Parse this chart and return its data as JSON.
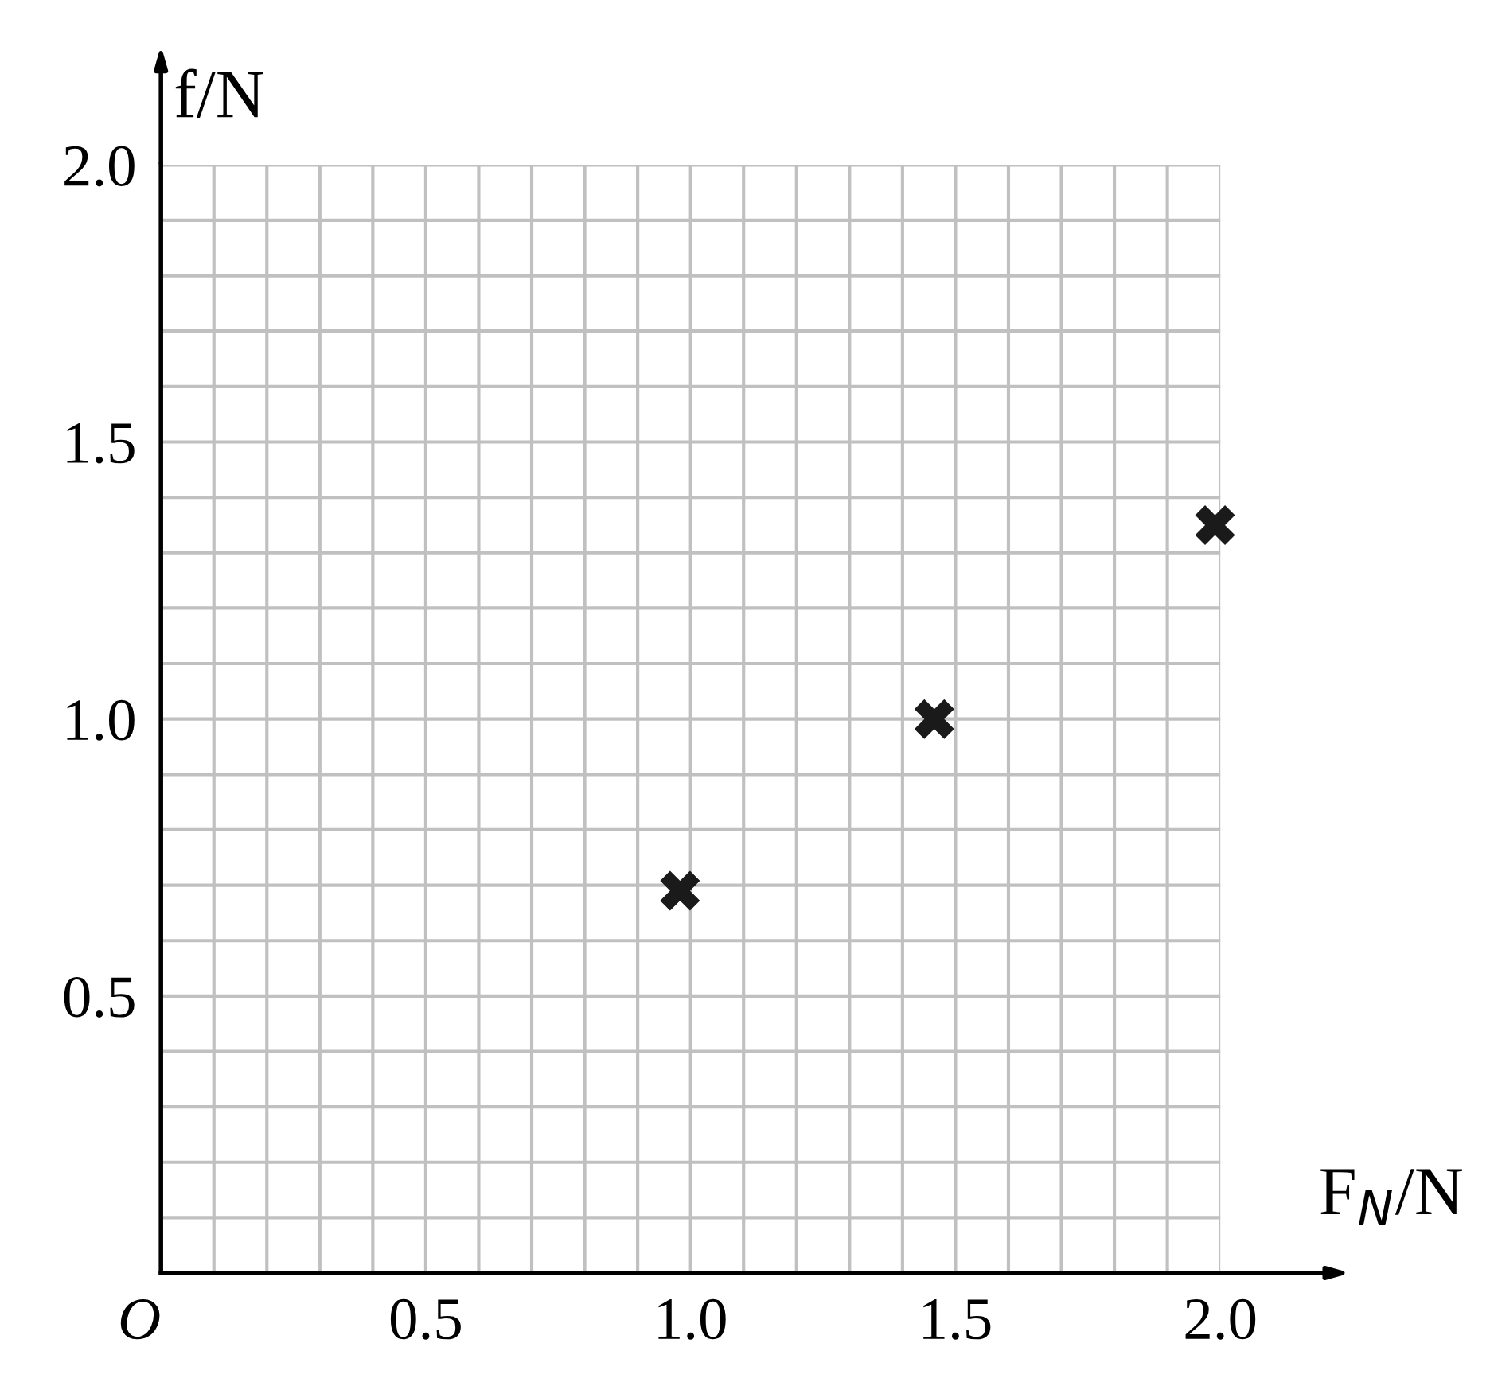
{
  "chart_data": {
    "type": "scatter",
    "xlabel": "F$_{N}$/N",
    "ylabel": "f/N",
    "x": [
      0.98,
      1.46,
      1.99
    ],
    "values": [
      0.69,
      1.0,
      1.35
    ],
    "color": "#1a1a1a",
    "marker": "cross",
    "grid": true,
    "xlim": [
      0,
      2.0
    ],
    "ylim": [
      0,
      2.0
    ],
    "xticks": [
      {
        "value": 0,
        "label": "O"
      },
      {
        "value": 0.1,
        "label": null
      },
      {
        "value": 0.2,
        "label": null
      },
      {
        "value": 0.3,
        "label": null
      },
      {
        "value": 0.4,
        "label": null
      },
      0.5,
      {
        "value": 0.6,
        "label": null
      },
      {
        "value": 0.7,
        "label": null
      },
      {
        "value": 0.8,
        "label": null
      },
      {
        "value": 0.9,
        "label": null
      },
      {
        "value": 1,
        "label": "1.0"
      },
      {
        "value": 1.1,
        "label": null
      },
      {
        "value": 1.2,
        "label": null
      },
      {
        "value": 1.3,
        "label": null
      },
      {
        "value": 1.4,
        "label": null
      },
      1.5,
      {
        "value": 1.6,
        "label": null
      },
      {
        "value": 1.7,
        "label": null
      },
      {
        "value": 1.8,
        "label": null
      },
      {
        "value": 1.9,
        "label": null
      },
      {
        "value": 2,
        "label": "2.0"
      }
    ],
    "yticks": [
      {
        "value": 0.1,
        "label": null
      },
      {
        "value": 0.2,
        "label": null
      },
      {
        "value": 0.3,
        "label": null
      },
      {
        "value": 0.4,
        "label": null
      },
      0.5,
      {
        "value": 0.6,
        "label": null
      },
      {
        "value": 0.7,
        "label": null
      },
      {
        "value": 0.8,
        "label": null
      },
      {
        "value": 0.9,
        "label": null
      },
      {
        "value": 1,
        "label": "1.0"
      },
      {
        "value": 1.1,
        "label": null
      },
      {
        "value": 1.2,
        "label": null
      },
      {
        "value": 1.3,
        "label": null
      },
      {
        "value": 1.4,
        "label": null
      },
      1.5,
      {
        "value": 1.6,
        "label": null
      },
      {
        "value": 1.7,
        "label": null
      },
      {
        "value": 1.8,
        "label": null
      },
      {
        "value": 1.9,
        "label": null
      },
      {
        "value": 2,
        "label": "2.0"
      }
    ]
  }
}
